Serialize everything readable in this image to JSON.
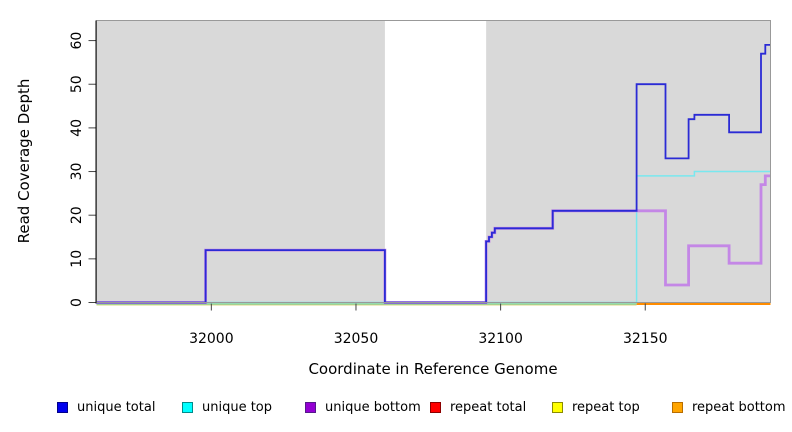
{
  "chart_data": {
    "type": "line",
    "style": "step",
    "title": "",
    "xlabel": "Coordinate in Reference Genome",
    "ylabel": "Read Coverage Depth",
    "xlim": [
      31960.3,
      32193.3
    ],
    "ylim": [
      0,
      64.6
    ],
    "x_ticks": [
      32000,
      32050,
      32100,
      32150
    ],
    "x_tick_labels": [
      "32000",
      "32050",
      "32100",
      "32150"
    ],
    "y_ticks": [
      0,
      10,
      20,
      30,
      40,
      50,
      60
    ],
    "y_tick_labels": [
      "0",
      "10",
      "20",
      "30",
      "40",
      "50",
      "60"
    ],
    "grid": false,
    "legend_position": "bottom",
    "panel": {
      "bg": "#D9D9D9",
      "border": "#999999",
      "axis_color": "#000000",
      "tick_color": "#444444",
      "gap_band": {
        "x_start": 32060,
        "x_end": 32095,
        "color": "#FFFFFF"
      }
    },
    "zero_overlap": {
      "color": "#7CC87C",
      "x_start": 31960.3,
      "x_end": 32147,
      "value": 0
    },
    "series": [
      {
        "name": "unique total",
        "color": "#2B2BD5",
        "x_end": 32193.3,
        "points": [
          [
            31960.3,
            0
          ],
          [
            31998,
            12
          ],
          [
            32060,
            0
          ],
          [
            32095,
            14
          ],
          [
            32096,
            15
          ],
          [
            32097,
            16
          ],
          [
            32098,
            17
          ],
          [
            32118,
            21
          ],
          [
            32147,
            50
          ],
          [
            32157,
            33
          ],
          [
            32165,
            42
          ],
          [
            32167,
            43
          ],
          [
            32179,
            39
          ],
          [
            32190,
            57
          ],
          [
            32191.5,
            59
          ]
        ]
      },
      {
        "name": "unique top",
        "color": "#79E8EF",
        "x_end": 32193.3,
        "points": [
          [
            31960.3,
            0
          ],
          [
            32147,
            29
          ],
          [
            32167,
            30
          ]
        ]
      },
      {
        "name": "unique bottom",
        "color": "#C487E6",
        "x_end": 32193.3,
        "points": [
          [
            31960.3,
            0
          ],
          [
            31998,
            12
          ],
          [
            32060,
            0
          ],
          [
            32095,
            14
          ],
          [
            32096,
            15
          ],
          [
            32097,
            16
          ],
          [
            32098,
            17
          ],
          [
            32118,
            21
          ],
          [
            32157,
            4
          ],
          [
            32165,
            13
          ],
          [
            32179,
            9
          ],
          [
            32190,
            27
          ],
          [
            32191.5,
            29
          ]
        ]
      },
      {
        "name": "repeat total",
        "color": "#FF0000",
        "x_end": 32193.3,
        "points": []
      },
      {
        "name": "repeat top",
        "color": "#E9E3AE",
        "x_end": 32147,
        "points": [
          [
            31960.3,
            0
          ]
        ]
      },
      {
        "name": "repeat bottom",
        "color": "#FF8C00",
        "x_end": 32193.3,
        "points": [
          [
            32147,
            0
          ]
        ]
      }
    ]
  },
  "axes": {
    "x_title": "Coordinate in Reference Genome",
    "y_title": "Read Coverage Depth"
  },
  "legend": {
    "items": [
      {
        "label": "unique total",
        "fill": "#0000EE",
        "border": "#00008B"
      },
      {
        "label": "unique top",
        "fill": "#00FFFF",
        "border": "#008B8B"
      },
      {
        "label": "unique bottom",
        "fill": "#9400D3",
        "border": "#551A8B"
      },
      {
        "label": "repeat total",
        "fill": "#FF0000",
        "border": "#8B0000"
      },
      {
        "label": "repeat top",
        "fill": "#FFFF00",
        "border": "#8B8B00"
      },
      {
        "label": "repeat bottom",
        "fill": "#FFA500",
        "border": "#B86D00"
      }
    ]
  }
}
